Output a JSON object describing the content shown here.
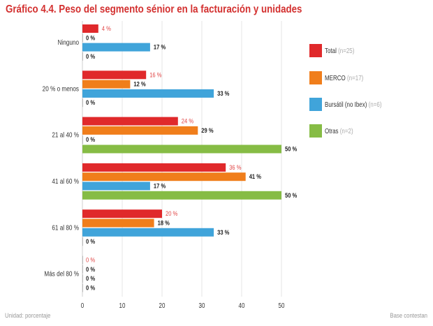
{
  "chart_data": {
    "type": "bar",
    "orientation": "horizontal",
    "title": "Gráfico 4.4. Peso del segmento sénior en la facturación y unidades",
    "categories": [
      "Ninguno",
      "20 % o menos",
      "21 al 40 %",
      "41 al 60 %",
      "61 al 80 %",
      "Más del 80 %"
    ],
    "series": [
      {
        "name": "Total",
        "note": "(n=25)",
        "color": "#e0292b",
        "values": [
          4,
          16,
          24,
          36,
          20,
          0
        ]
      },
      {
        "name": "MERCO",
        "note": "(n=17)",
        "color": "#f07e1b",
        "values": [
          0,
          12,
          29,
          41,
          18,
          0
        ]
      },
      {
        "name": "Bursátil (no Ibex)",
        "note": "(n=6)",
        "color": "#40a4da",
        "values": [
          17,
          33,
          0,
          17,
          33,
          0
        ]
      },
      {
        "name": "Otras",
        "note": "(n=2)",
        "color": "#86bc45",
        "values": [
          0,
          0,
          50,
          50,
          0,
          0
        ]
      }
    ],
    "value_suffix": " %",
    "xlim": [
      0,
      50
    ],
    "xticks": [
      0,
      10,
      20,
      30,
      40,
      50
    ],
    "grid": true,
    "legend_position": "right",
    "footnote_left": "Unidad: porcentaje",
    "footnote_right": "Base contestan"
  }
}
